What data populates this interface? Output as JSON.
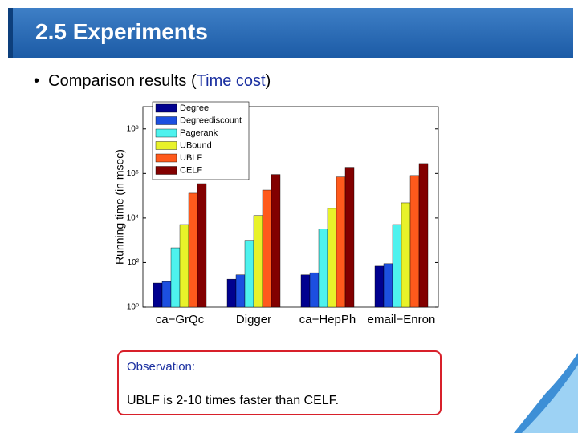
{
  "slide": {
    "title": "2.5 Experiments",
    "bullet": {
      "marker": "•",
      "before": "Comparison results (",
      "highlight": "Time cost",
      "after": ")"
    },
    "observation": {
      "heading": "Observation:",
      "text": "UBLF is 2-10 times faster than CELF."
    }
  },
  "chart_data": {
    "type": "bar",
    "y_label": "Running time (in msec)",
    "categories": [
      "ca−GrQc",
      "Digger",
      "ca−HepPh",
      "email−Enron"
    ],
    "series": [
      {
        "name": "Degree",
        "color": "#00008f",
        "values": [
          12,
          18,
          28,
          69
        ]
      },
      {
        "name": "Degreediscount",
        "color": "#1c4fe0",
        "values": [
          14,
          28,
          35,
          89
        ]
      },
      {
        "name": "Pagerank",
        "color": "#4ef2ee",
        "values": [
          460,
          1000,
          3200,
          5100
        ]
      },
      {
        "name": "UBound",
        "color": "#e8f22a",
        "values": [
          5100,
          13000,
          27000,
          48000
        ]
      },
      {
        "name": "UBLF",
        "color": "#ff5a1c",
        "values": [
          130000,
          180000,
          700000,
          810000
        ]
      },
      {
        "name": "CELF",
        "color": "#820000",
        "values": [
          350000,
          900000,
          1900000,
          2800000
        ]
      }
    ],
    "log_scale": true,
    "ylim": [
      1,
      1000000000
    ],
    "yticks": [
      {
        "value": 1,
        "label": "10⁰"
      },
      {
        "value": 100,
        "label": "10²"
      },
      {
        "value": 10000,
        "label": "10⁴"
      },
      {
        "value": 1000000,
        "label": "10⁶"
      },
      {
        "value": 100000000,
        "label": "10⁸"
      }
    ],
    "legend": "top-left"
  }
}
